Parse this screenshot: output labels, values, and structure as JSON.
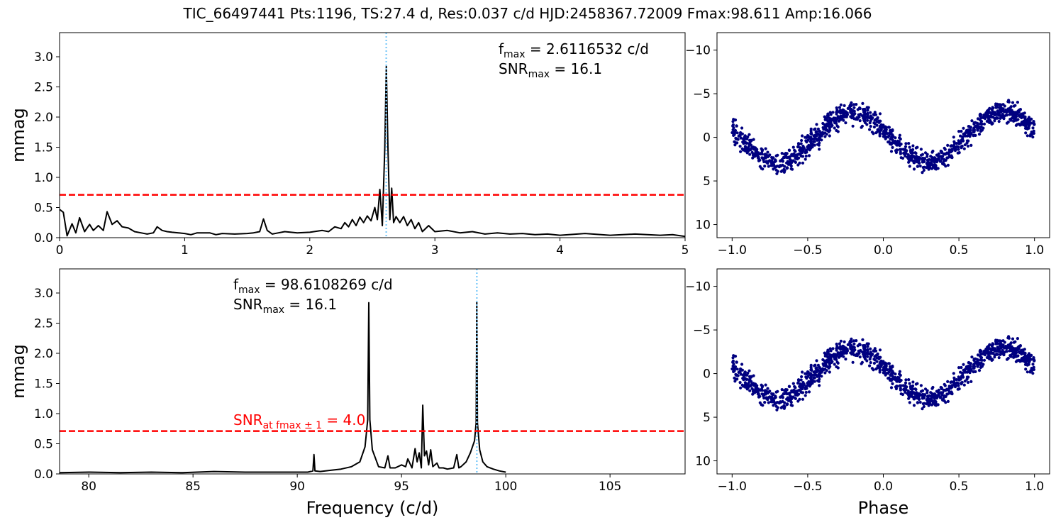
{
  "figure": {
    "title": "TIC_66497441  Pts:1196,  TS:27.4 d,  Res:0.037 c/d HJD:2458367.72009 Fmax:98.611 Amp:16.066"
  },
  "chart_data": [
    {
      "id": "low-periodogram",
      "type": "line",
      "xlabel": "",
      "ylabel": "mmag",
      "xlim": [
        0,
        5
      ],
      "ylim": [
        0,
        3.4
      ],
      "xticks": [
        0,
        1,
        2,
        3,
        4,
        5
      ],
      "yticks": [
        0.0,
        0.5,
        1.0,
        1.5,
        2.0,
        2.5,
        3.0
      ],
      "x_tick_labels": [
        "0",
        "1",
        "2",
        "3",
        "4",
        "5"
      ],
      "y_tick_labels": [
        "0.0",
        "0.5",
        "1.0",
        "1.5",
        "2.0",
        "2.5",
        "3.0"
      ],
      "threshold": 0.71,
      "peak_marker_x": 2.6116532,
      "series_color": "#000000",
      "threshold_color": "#ff0000",
      "marker_color": "#87cefa",
      "series": [
        {
          "x": [
            0.0,
            0.03,
            0.06,
            0.1,
            0.13,
            0.16,
            0.2,
            0.24,
            0.27,
            0.31,
            0.35,
            0.38,
            0.42,
            0.46,
            0.5,
            0.55,
            0.6,
            0.65,
            0.7,
            0.75,
            0.78,
            0.82,
            0.86,
            0.9,
            0.95,
            1.0,
            1.05,
            1.1,
            1.2,
            1.25,
            1.3,
            1.4,
            1.5,
            1.55,
            1.6,
            1.63,
            1.66,
            1.7,
            1.75,
            1.8,
            1.9,
            2.0,
            2.1,
            2.15,
            2.2,
            2.25,
            2.28,
            2.31,
            2.34,
            2.37,
            2.4,
            2.43,
            2.46,
            2.49,
            2.52,
            2.54,
            2.56,
            2.58,
            2.6,
            2.6117,
            2.625,
            2.64,
            2.655,
            2.67,
            2.69,
            2.72,
            2.75,
            2.78,
            2.81,
            2.84,
            2.87,
            2.9,
            2.95,
            3.0,
            3.1,
            3.2,
            3.3,
            3.4,
            3.5,
            3.6,
            3.7,
            3.8,
            3.9,
            4.0,
            4.2,
            4.4,
            4.6,
            4.8,
            4.9,
            5.0
          ],
          "y": [
            0.47,
            0.42,
            0.03,
            0.23,
            0.08,
            0.33,
            0.1,
            0.22,
            0.12,
            0.2,
            0.12,
            0.43,
            0.22,
            0.28,
            0.18,
            0.16,
            0.1,
            0.08,
            0.06,
            0.08,
            0.18,
            0.12,
            0.1,
            0.09,
            0.08,
            0.07,
            0.05,
            0.08,
            0.08,
            0.05,
            0.07,
            0.06,
            0.07,
            0.08,
            0.1,
            0.31,
            0.12,
            0.06,
            0.08,
            0.1,
            0.08,
            0.09,
            0.12,
            0.1,
            0.18,
            0.15,
            0.25,
            0.18,
            0.3,
            0.2,
            0.34,
            0.25,
            0.36,
            0.28,
            0.5,
            0.3,
            0.8,
            0.2,
            1.5,
            2.84,
            1.5,
            0.3,
            0.82,
            0.25,
            0.35,
            0.25,
            0.35,
            0.2,
            0.3,
            0.15,
            0.25,
            0.1,
            0.2,
            0.1,
            0.12,
            0.08,
            0.1,
            0.06,
            0.08,
            0.06,
            0.07,
            0.05,
            0.06,
            0.04,
            0.07,
            0.04,
            0.06,
            0.04,
            0.05,
            0.02
          ]
        }
      ]
    },
    {
      "id": "high-periodogram",
      "type": "line",
      "xlabel": "Frequency (c/d)",
      "ylabel": "mmag",
      "xlim": [
        78.6,
        108.6
      ],
      "ylim": [
        0,
        3.4
      ],
      "xticks": [
        80,
        85,
        90,
        95,
        100,
        105
      ],
      "yticks": [
        0.0,
        0.5,
        1.0,
        1.5,
        2.0,
        2.5,
        3.0
      ],
      "x_tick_labels": [
        "80",
        "85",
        "90",
        "95",
        "100",
        "105"
      ],
      "y_tick_labels": [
        "0.0",
        "0.5",
        "1.0",
        "1.5",
        "2.0",
        "2.5",
        "3.0"
      ],
      "threshold": 0.71,
      "peak_marker_x": 98.6108269,
      "series_color": "#000000",
      "threshold_color": "#ff0000",
      "marker_color": "#87cefa",
      "series": [
        {
          "x": [
            78.6,
            80.0,
            81.5,
            83.0,
            84.5,
            86.0,
            87.5,
            89.0,
            90.5,
            90.75,
            90.8,
            90.85,
            91.1,
            91.6,
            92.1,
            92.6,
            93.0,
            93.25,
            93.38,
            93.43,
            93.48,
            93.6,
            93.9,
            94.2,
            94.35,
            94.45,
            94.7,
            95.0,
            95.2,
            95.3,
            95.5,
            95.65,
            95.75,
            95.85,
            95.95,
            96.02,
            96.1,
            96.2,
            96.3,
            96.4,
            96.5,
            96.7,
            96.8,
            97.0,
            97.2,
            97.5,
            97.65,
            97.75,
            97.85,
            98.1,
            98.3,
            98.5,
            98.58,
            98.61,
            98.64,
            98.75,
            98.9,
            99.1,
            99.4,
            99.7,
            100.0
          ],
          "y": [
            0.02,
            0.03,
            0.02,
            0.03,
            0.02,
            0.04,
            0.03,
            0.03,
            0.03,
            0.05,
            0.32,
            0.05,
            0.04,
            0.06,
            0.08,
            0.12,
            0.2,
            0.45,
            0.9,
            2.84,
            0.9,
            0.4,
            0.12,
            0.1,
            0.3,
            0.1,
            0.1,
            0.15,
            0.12,
            0.25,
            0.1,
            0.42,
            0.2,
            0.35,
            0.1,
            1.14,
            0.3,
            0.38,
            0.15,
            0.4,
            0.12,
            0.18,
            0.1,
            0.1,
            0.08,
            0.1,
            0.32,
            0.1,
            0.12,
            0.2,
            0.35,
            0.55,
            0.85,
            2.86,
            0.85,
            0.4,
            0.2,
            0.12,
            0.08,
            0.05,
            0.03
          ]
        }
      ]
    },
    {
      "id": "phase-top",
      "type": "scatter",
      "xlabel": "",
      "ylabel": "",
      "xlim": [
        -1.1,
        1.1
      ],
      "ylim": [
        11.5,
        -12.0
      ],
      "y_inverted": true,
      "xticks": [
        -1.0,
        -0.5,
        0.0,
        0.5,
        1.0
      ],
      "yticks": [
        10,
        5,
        0,
        -5,
        -10
      ],
      "x_tick_labels": [
        "−1.0",
        "−0.5",
        "0.0",
        "0.5",
        "1.0"
      ],
      "y_tick_labels": [
        "10",
        "5",
        "0",
        "−5",
        "−10"
      ],
      "point_color": "#000080",
      "model": {
        "amplitude": 2.85,
        "phase_of_minimum": -0.2,
        "scatter": 0.9,
        "n_points": 1196,
        "phase_range": [
          -1.0,
          1.0
        ]
      }
    },
    {
      "id": "phase-bottom",
      "type": "scatter",
      "xlabel": "Phase",
      "ylabel": "",
      "xlim": [
        -1.1,
        1.1
      ],
      "ylim": [
        11.5,
        -12.0
      ],
      "y_inverted": true,
      "xticks": [
        -1.0,
        -0.5,
        0.0,
        0.5,
        1.0
      ],
      "yticks": [
        10,
        5,
        0,
        -5,
        -10
      ],
      "x_tick_labels": [
        "−1.0",
        "−0.5",
        "0.0",
        "0.5",
        "1.0"
      ],
      "y_tick_labels": [
        "10",
        "5",
        "0",
        "−5",
        "−10"
      ],
      "point_color": "#000080",
      "model": {
        "amplitude": 2.85,
        "phase_of_minimum": -0.2,
        "scatter": 0.9,
        "n_points": 1196,
        "phase_range": [
          -1.0,
          1.0
        ]
      }
    }
  ],
  "annotations": {
    "top_fmax_main": "f",
    "top_fmax_sub": "max",
    "top_fmax_value": " = 2.6116532 c/d",
    "top_snr_main": "SNR",
    "top_snr_sub": "max",
    "top_snr_value": " = 16.1",
    "bottom_fmax_main": "f",
    "bottom_fmax_sub": "max",
    "bottom_fmax_value": " = 98.6108269 c/d",
    "bottom_snr_main": "SNR",
    "bottom_snr_sub": "max",
    "bottom_snr_value": " = 16.1",
    "bottom_snr_fmax_main": "SNR",
    "bottom_snr_fmax_sub": "at fmax ± 1",
    "bottom_snr_fmax_value": " = 4.0"
  }
}
